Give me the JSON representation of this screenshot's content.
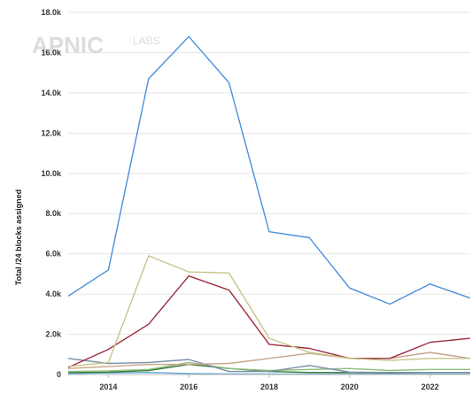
{
  "watermark": {
    "brand": "APNIC",
    "suffix": "LABS"
  },
  "chart_data": {
    "type": "line",
    "title": "",
    "xlabel": "",
    "ylabel": "Total /24 blocks assigned",
    "x": [
      2013,
      2014,
      2015,
      2016,
      2017,
      2018,
      2019,
      2020,
      2021,
      2022,
      2023
    ],
    "xlim": [
      2013,
      2023
    ],
    "ylim": [
      0,
      18000
    ],
    "y_ticks": [
      0,
      2000,
      4000,
      6000,
      8000,
      10000,
      12000,
      14000,
      16000,
      18000
    ],
    "y_tick_labels": [
      "0",
      "2.0k",
      "4.0k",
      "6.0k",
      "8.0k",
      "10.0k",
      "12.0k",
      "14.0k",
      "16.0k",
      "18.0k"
    ],
    "x_ticks": [
      2014,
      2016,
      2018,
      2020,
      2022
    ],
    "x_tick_labels": [
      "2014",
      "2016",
      "2018",
      "2020",
      "2022"
    ],
    "grid": "horizontal",
    "legend": "none",
    "series": [
      {
        "color": "#4a90d9",
        "values": [
          3900,
          5200,
          14700,
          16800,
          14500,
          7100,
          6800,
          4300,
          3500,
          4500,
          3800
        ]
      },
      {
        "color": "#c8c48a",
        "values": [
          400,
          600,
          5900,
          5100,
          5050,
          1800,
          1100,
          800,
          700,
          800,
          800
        ]
      },
      {
        "color": "#9b2d40",
        "values": [
          350,
          1250,
          2500,
          4900,
          4200,
          1500,
          1300,
          800,
          800,
          1600,
          1800
        ]
      },
      {
        "color": "#c7a489",
        "values": [
          300,
          400,
          500,
          500,
          550,
          800,
          1050,
          800,
          800,
          1100,
          800
        ]
      },
      {
        "color": "#7a8ea6",
        "values": [
          800,
          550,
          600,
          750,
          150,
          150,
          450,
          120,
          100,
          100,
          100
        ]
      },
      {
        "color": "#8fbf7a",
        "values": [
          150,
          180,
          250,
          600,
          300,
          200,
          250,
          300,
          200,
          250,
          250
        ]
      },
      {
        "color": "#3c7a3c",
        "values": [
          100,
          120,
          200,
          500,
          300,
          150,
          100,
          100,
          80,
          100,
          100
        ]
      },
      {
        "color": "#5fa8d3",
        "values": [
          50,
          80,
          100,
          50,
          30,
          20,
          20,
          30,
          20,
          20,
          20
        ]
      }
    ]
  }
}
